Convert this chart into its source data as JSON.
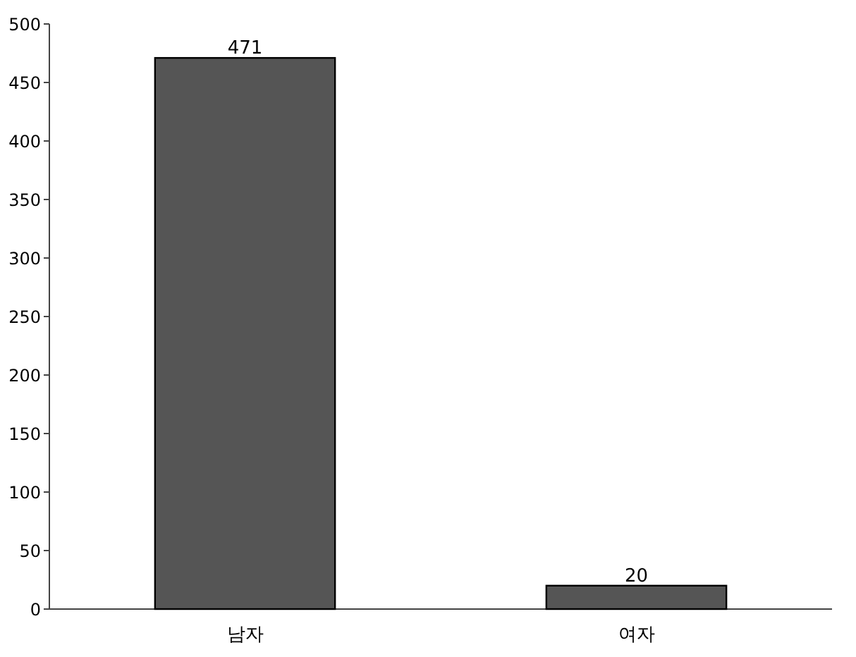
{
  "chart_data": {
    "type": "bar",
    "categories": [
      "남자",
      "여자"
    ],
    "values": [
      471,
      20
    ],
    "color": "#555555",
    "ylim": [
      0,
      500
    ],
    "yticks": [
      0,
      50,
      100,
      150,
      200,
      250,
      300,
      350,
      400,
      450,
      500
    ],
    "data_labels": true
  }
}
